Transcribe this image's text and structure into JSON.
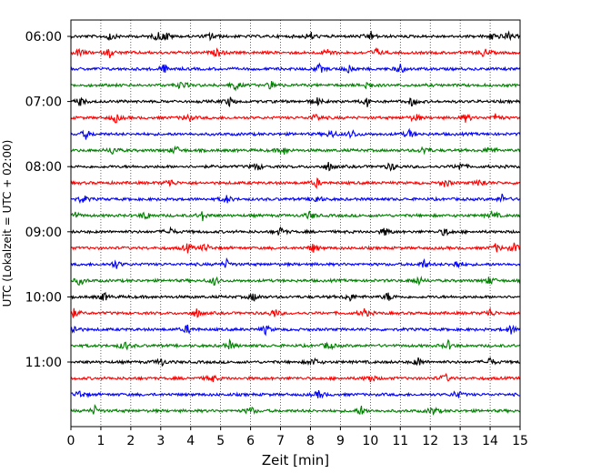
{
  "chart_data": {
    "type": "line",
    "title": "",
    "xlabel": "Zeit  [min]",
    "ylabel": "UTC (Lokalzeit = UTC + 02:00)",
    "xlim": [
      0,
      15
    ],
    "x_ticks": [
      "0",
      "1",
      "2",
      "3",
      "4",
      "5",
      "6",
      "7",
      "8",
      "9",
      "10",
      "11",
      "12",
      "13",
      "14",
      "15"
    ],
    "y_tick_labels": [
      {
        "trace": 0,
        "label": "06:00"
      },
      {
        "trace": 4,
        "label": "07:00"
      },
      {
        "trace": 8,
        "label": "08:00"
      },
      {
        "trace": 12,
        "label": "09:00"
      },
      {
        "trace": 16,
        "label": "10:00"
      },
      {
        "trace": 20,
        "label": "11:00"
      }
    ],
    "grid": "vertical dotted lines at each minute",
    "trace_interval_min": 15,
    "colors": [
      "#000000",
      "#ff0000",
      "#0000ff",
      "#008000"
    ],
    "traces": [
      {
        "start": "06:00",
        "color": "#000000",
        "events_min": [
          1.3,
          2.9,
          3.2,
          4.7,
          8.0,
          10.0,
          14.1,
          14.6
        ]
      },
      {
        "start": "06:15",
        "color": "#ff0000",
        "events_min": [
          0.3,
          1.3,
          4.9,
          8.6,
          10.2,
          13.8
        ]
      },
      {
        "start": "06:30",
        "color": "#0000ff",
        "events_min": [
          3.1,
          8.3,
          9.3,
          11.0
        ]
      },
      {
        "start": "06:45",
        "color": "#008000",
        "events_min": [
          3.7,
          5.5,
          6.7,
          9.9
        ]
      },
      {
        "start": "07:00",
        "color": "#000000",
        "events_min": [
          0.3,
          5.3,
          8.2,
          9.9,
          11.4
        ]
      },
      {
        "start": "07:15",
        "color": "#ff0000",
        "events_min": [
          1.5,
          3.9,
          8.2,
          11.5,
          13.2,
          14.2
        ]
      },
      {
        "start": "07:30",
        "color": "#0000ff",
        "events_min": [
          0.5,
          8.7,
          9.4,
          11.3
        ]
      },
      {
        "start": "07:45",
        "color": "#008000",
        "events_min": [
          1.4,
          3.5,
          7.1,
          11.8,
          14.0
        ]
      },
      {
        "start": "08:00",
        "color": "#000000",
        "events_min": [
          6.2,
          8.6,
          10.7,
          13.0
        ]
      },
      {
        "start": "08:15",
        "color": "#ff0000",
        "events_min": [
          3.3,
          8.2,
          12.5,
          13.7
        ]
      },
      {
        "start": "08:30",
        "color": "#0000ff",
        "events_min": [
          0.4,
          5.2,
          8.2,
          14.4
        ]
      },
      {
        "start": "08:45",
        "color": "#008000",
        "events_min": [
          0.1,
          2.5,
          4.4,
          8.0,
          14.1
        ]
      },
      {
        "start": "09:00",
        "color": "#000000",
        "events_min": [
          3.3,
          7.0,
          10.5,
          12.5
        ]
      },
      {
        "start": "09:15",
        "color": "#ff0000",
        "events_min": [
          3.9,
          4.5,
          8.1,
          14.2,
          14.8
        ]
      },
      {
        "start": "09:30",
        "color": "#0000ff",
        "events_min": [
          1.5,
          5.2,
          11.8,
          12.9
        ]
      },
      {
        "start": "09:45",
        "color": "#008000",
        "events_min": [
          0.3,
          4.8,
          11.6,
          14.0
        ]
      },
      {
        "start": "10:00",
        "color": "#000000",
        "events_min": [
          1.1,
          6.1,
          9.3,
          10.6
        ]
      },
      {
        "start": "10:15",
        "color": "#ff0000",
        "events_min": [
          0.1,
          4.2,
          6.8,
          9.8,
          14.0
        ]
      },
      {
        "start": "10:30",
        "color": "#0000ff",
        "events_min": [
          0.1,
          3.9,
          6.5,
          14.7
        ]
      },
      {
        "start": "10:45",
        "color": "#008000",
        "events_min": [
          1.8,
          5.3,
          8.6,
          12.6
        ]
      },
      {
        "start": "11:00",
        "color": "#000000",
        "events_min": [
          3.0,
          8.1,
          11.6,
          14.0
        ]
      },
      {
        "start": "11:15",
        "color": "#ff0000",
        "events_min": [
          4.7,
          10.0,
          12.5
        ]
      },
      {
        "start": "11:30",
        "color": "#0000ff",
        "events_min": [
          0.3,
          8.3,
          12.9
        ]
      },
      {
        "start": "11:45",
        "color": "#008000",
        "events_min": [
          0.8,
          6.0,
          9.7,
          12.1
        ]
      }
    ]
  }
}
